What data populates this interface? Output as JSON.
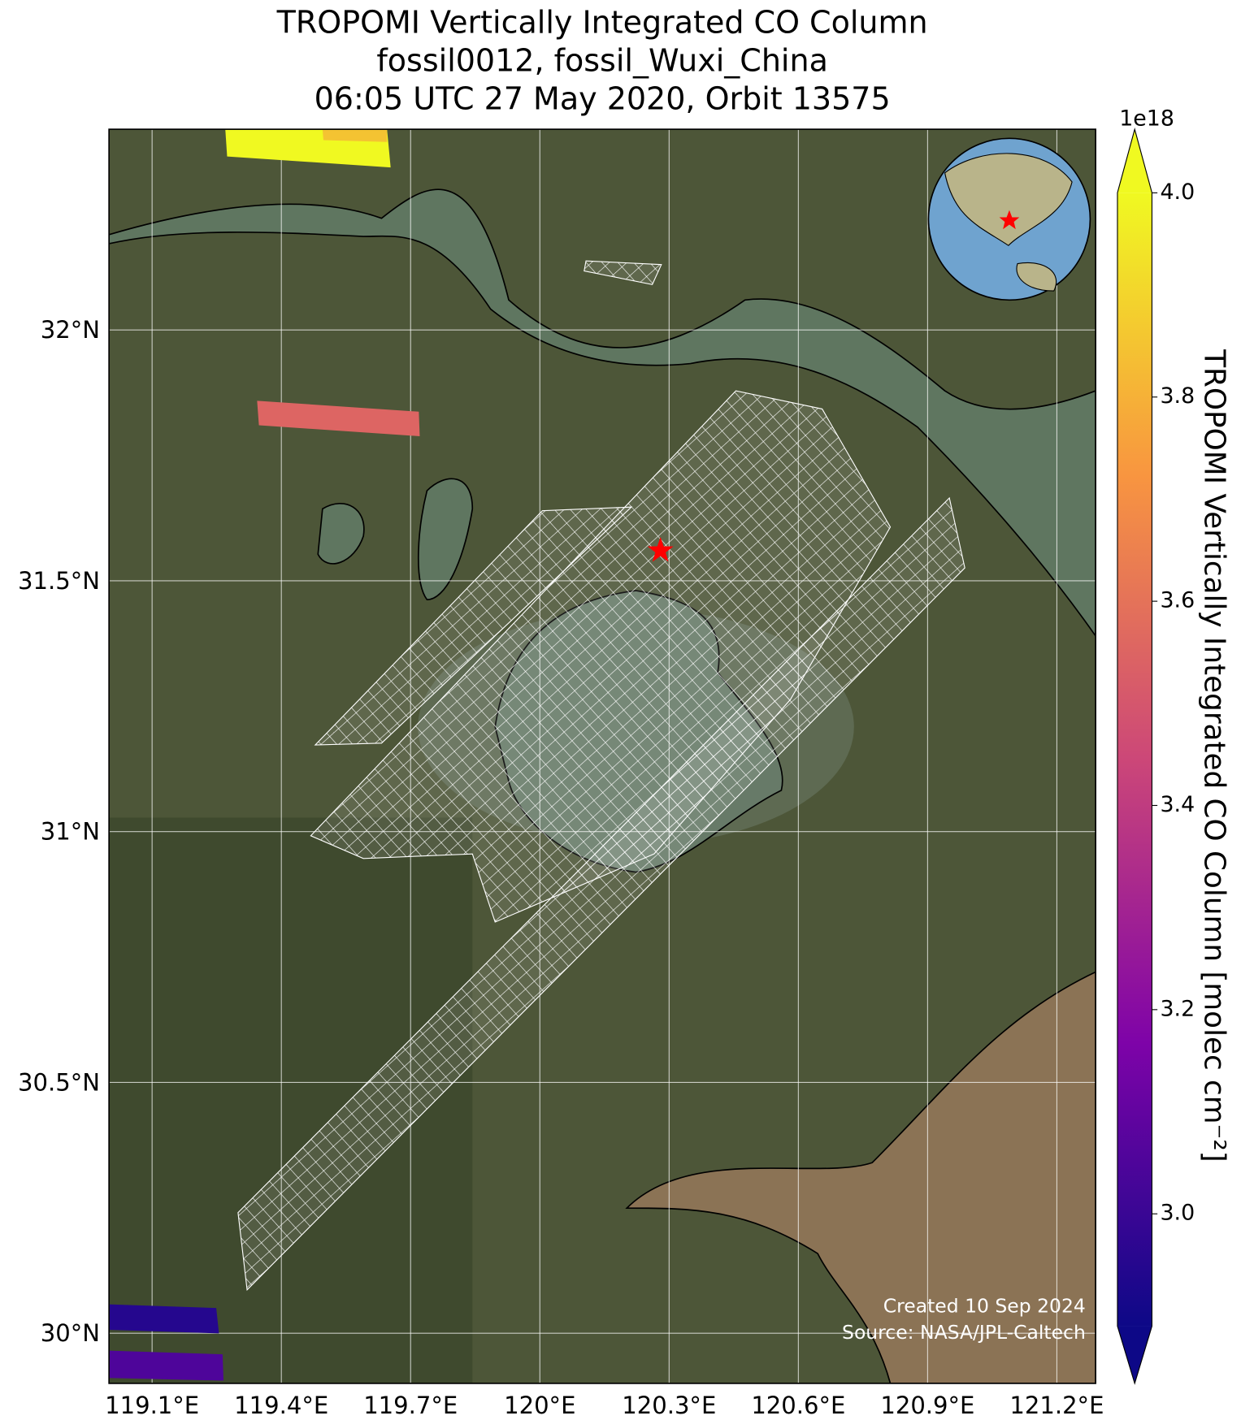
{
  "chart_data": {
    "type": "map",
    "title": [
      "TROPOMI Vertically Integrated CO Column",
      "fossil0012, fossil_Wuxi_China",
      "06:05 UTC 27 May 2020, Orbit 13575"
    ],
    "xlim": [
      119.0,
      121.29
    ],
    "xticks": [
      {
        "value": 119.1,
        "label": "119.1°E"
      },
      {
        "value": 119.4,
        "label": "119.4°E"
      },
      {
        "value": 119.7,
        "label": "119.7°E"
      },
      {
        "value": 120,
        "label": "120°E"
      },
      {
        "value": 120.3,
        "label": "120.3°E"
      },
      {
        "value": 120.6,
        "label": "120.6°E"
      },
      {
        "value": 120.9,
        "label": "120.9°E"
      },
      {
        "value": 121.2,
        "label": "121.2°E"
      }
    ],
    "ylim": [
      29.9,
      32.4
    ],
    "yticks": [
      {
        "value": 30,
        "label": "30°N"
      },
      {
        "value": 30.5,
        "label": "30.5°N"
      },
      {
        "value": 31,
        "label": "31°N"
      },
      {
        "value": 31.5,
        "label": "31.5°N"
      },
      {
        "value": 32,
        "label": "32°N"
      }
    ],
    "grid": true,
    "site": {
      "lon": 120.28,
      "lat": 31.56,
      "color": "#ff0000"
    },
    "pixels": [
      {
        "value": 4.0
      },
      {
        "value": 3.85
      },
      {
        "value": 3.55
      },
      {
        "value": 2.95
      },
      {
        "value": 3.05
      }
    ],
    "colorbar": {
      "label": "TROPOMI Vertically Integrated CO Column [molec cm⁻²]",
      "offset_label": "1e18",
      "colormap": "plasma",
      "extend": "both",
      "lim": [
        2.89,
        4.0
      ],
      "ticks": [
        {
          "value": 3,
          "label": "3.0"
        },
        3.2,
        3.4,
        3.6,
        3.8,
        {
          "value": 4,
          "label": "4.0"
        }
      ]
    },
    "annotations": [
      "Created 10 Sep 2024",
      "Source: NASA/JPL-Caltech"
    ]
  }
}
